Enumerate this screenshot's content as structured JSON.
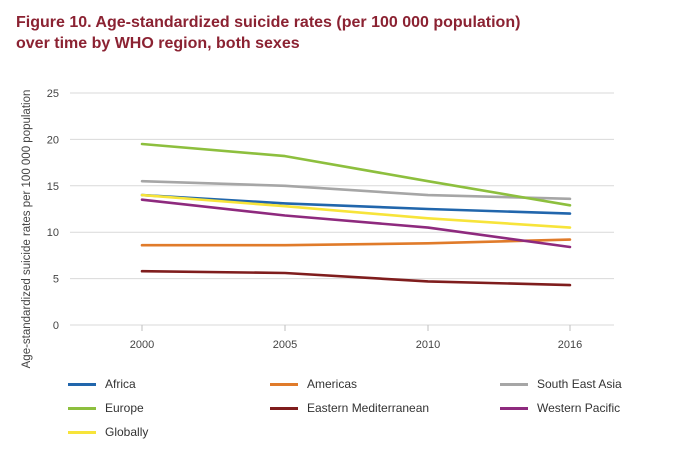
{
  "chart_data": {
    "type": "line",
    "title_lines": [
      "Figure 10. Age-standardized suicide rates (per 100 000 population)",
      "over time by WHO region, both sexes"
    ],
    "ylabel": "Age-standardized suicide rates per 100 000 population",
    "xlabel": "",
    "x": [
      "2000",
      "2005",
      "2010",
      "2016"
    ],
    "ylim": [
      0,
      25
    ],
    "yticks": [
      0,
      5,
      10,
      15,
      20,
      25
    ],
    "grid": "horizontal",
    "legend_position": "bottom",
    "series": [
      {
        "name": "Africa",
        "color": "#2166AC",
        "values": [
          14.0,
          13.1,
          12.5,
          12.0
        ]
      },
      {
        "name": "Americas",
        "color": "#E07B2A",
        "values": [
          8.6,
          8.6,
          8.8,
          9.2
        ]
      },
      {
        "name": "South East Asia",
        "color": "#A6A6A6",
        "values": [
          15.5,
          15.0,
          14.0,
          13.6
        ]
      },
      {
        "name": "Europe",
        "color": "#8DBF3E",
        "values": [
          19.5,
          18.2,
          15.5,
          12.9
        ]
      },
      {
        "name": "Eastern Mediterranean",
        "color": "#7F1D1D",
        "values": [
          5.8,
          5.6,
          4.7,
          4.3
        ]
      },
      {
        "name": "Western Pacific",
        "color": "#8E2A7E",
        "values": [
          13.5,
          11.8,
          10.5,
          8.4
        ]
      },
      {
        "name": "Globally",
        "color": "#F7E43A",
        "values": [
          14.0,
          12.8,
          11.5,
          10.5
        ]
      }
    ]
  }
}
